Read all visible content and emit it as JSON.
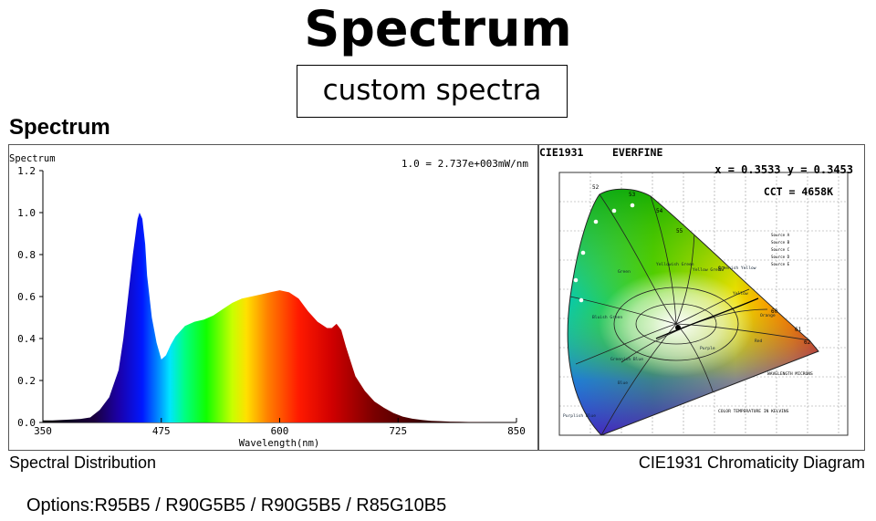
{
  "header": {
    "title": "Spectrum",
    "subtitle": "custom spectra",
    "section_title": "Spectrum"
  },
  "chart_data": {
    "type": "area",
    "title": "Spectrum",
    "scale_note": "1.0 = 2.737e+003mW/nm",
    "xlabel": "Wavelength(nm)",
    "ylabel": "Spectrum",
    "xlim": [
      350,
      850
    ],
    "ylim": [
      0,
      1.2
    ],
    "x_ticks": [
      350,
      475,
      600,
      725,
      850
    ],
    "y_ticks": [
      "0.0",
      "0.2",
      "0.4",
      "0.6",
      "0.8",
      "1.0",
      "1.2"
    ],
    "grid": false,
    "x": [
      350,
      360,
      370,
      380,
      390,
      400,
      410,
      420,
      430,
      435,
      440,
      445,
      450,
      452,
      455,
      458,
      460,
      465,
      470,
      475,
      480,
      485,
      490,
      500,
      510,
      520,
      530,
      540,
      550,
      560,
      570,
      580,
      590,
      600,
      610,
      620,
      630,
      640,
      650,
      655,
      660,
      665,
      670,
      680,
      690,
      700,
      710,
      720,
      730,
      740,
      750,
      760,
      770,
      780,
      790,
      800,
      810,
      820,
      830,
      840,
      850
    ],
    "values": [
      0.01,
      0.01,
      0.012,
      0.014,
      0.017,
      0.024,
      0.06,
      0.12,
      0.25,
      0.4,
      0.6,
      0.8,
      0.97,
      1.0,
      0.97,
      0.85,
      0.7,
      0.5,
      0.38,
      0.3,
      0.32,
      0.37,
      0.41,
      0.46,
      0.48,
      0.49,
      0.51,
      0.54,
      0.57,
      0.59,
      0.6,
      0.61,
      0.62,
      0.63,
      0.62,
      0.59,
      0.53,
      0.48,
      0.45,
      0.45,
      0.47,
      0.44,
      0.36,
      0.22,
      0.15,
      0.1,
      0.07,
      0.045,
      0.028,
      0.018,
      0.012,
      0.008,
      0.006,
      0.004,
      0.003,
      0.002,
      0.002,
      0.001,
      0.001,
      0.001,
      0.001
    ]
  },
  "cie": {
    "header_left": "CIE1931",
    "header_brand": "EVERFINE",
    "xy_readout": "x = 0.3533 y = 0.3453",
    "cct_readout": "CCT = 4658K",
    "locus_labels": [
      "52",
      "53",
      "54",
      "55",
      "57",
      "60",
      "61",
      "62"
    ],
    "region_labels": [
      "Green",
      "Yellowish Green",
      "Yellow Green",
      "Greenish Yellow",
      "Yellow",
      "Orange",
      "Bluish Green",
      "Greenish Blue",
      "Blue",
      "Purple",
      "Red",
      "Purplish Blue"
    ],
    "sources": [
      "Source A",
      "Source B",
      "Source C",
      "Source D",
      "Source E"
    ],
    "footer_note": "COLOR TEMPERATURE IN KELVINS",
    "microns_label": "WAVELENGTH MICRONS"
  },
  "captions": {
    "left": "Spectral Distribution",
    "right": "CIE1931 Chromaticity Diagram"
  },
  "options_text": "Options:R95B5 / R90G5B5 / R90G5B5 / R85G10B5"
}
